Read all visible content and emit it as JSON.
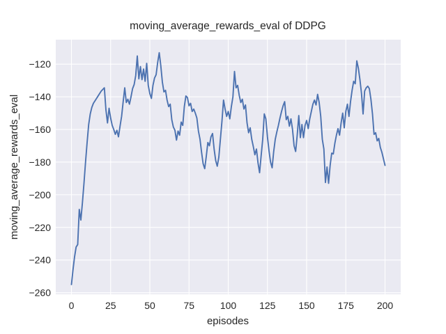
{
  "chart_data": {
    "type": "line",
    "title": "moving_average_rewards_eval of DDPG",
    "xlabel": "episodes",
    "ylabel": "moving_average_rewards_eval",
    "x_ticks": [
      0,
      25,
      50,
      75,
      100,
      125,
      150,
      175,
      200
    ],
    "y_ticks": [
      -260,
      -240,
      -220,
      -200,
      -180,
      -160,
      -140,
      -120
    ],
    "xlim": [
      -10,
      210
    ],
    "ylim": [
      -261,
      -105
    ],
    "grid": true,
    "legend_position": "none",
    "line_color": "#4c72b0",
    "plot_bg": "#eaeaf2",
    "grid_color": "#ffffff",
    "text_color": "#262626",
    "x_start": 0,
    "x_step": 1,
    "values": [
      -255,
      -246,
      -238,
      -232,
      -230.5,
      -209,
      -215.5,
      -205,
      -193,
      -180,
      -168,
      -157,
      -150.5,
      -146.5,
      -144,
      -142.5,
      -141,
      -139.5,
      -138,
      -136.5,
      -135.5,
      -134.5,
      -148,
      -156,
      -147,
      -153,
      -157.5,
      -160,
      -163,
      -160.5,
      -164.5,
      -158,
      -152,
      -143,
      -134.5,
      -143.5,
      -141.5,
      -144.5,
      -140,
      -135,
      -132.5,
      -127,
      -115,
      -129,
      -121.5,
      -129.5,
      -123,
      -130.5,
      -119.5,
      -133,
      -138,
      -141,
      -133,
      -128.5,
      -126.5,
      -119,
      -113,
      -121,
      -131,
      -137,
      -136,
      -142,
      -146,
      -144.5,
      -154,
      -158.5,
      -160.5,
      -166.5,
      -161,
      -163.5,
      -155.5,
      -157.5,
      -146,
      -139.5,
      -140.5,
      -145.5,
      -144,
      -149,
      -147.5,
      -150,
      -153,
      -161,
      -166,
      -174,
      -181,
      -184,
      -176.5,
      -168,
      -170,
      -164.5,
      -162.5,
      -172,
      -179,
      -182.5,
      -177,
      -166,
      -155,
      -142,
      -147.5,
      -152,
      -149,
      -153.5,
      -146,
      -140,
      -124.5,
      -134.5,
      -133,
      -139,
      -143.5,
      -141.5,
      -147.5,
      -145,
      -156,
      -162,
      -159,
      -166,
      -170.5,
      -175.5,
      -172,
      -180.5,
      -186.5,
      -176,
      -166,
      -150.5,
      -153.5,
      -164.5,
      -173,
      -180,
      -183.5,
      -173.5,
      -166,
      -161.5,
      -157.5,
      -153,
      -149,
      -145.5,
      -143,
      -154,
      -152,
      -158,
      -153.5,
      -160,
      -170,
      -173.5,
      -163.5,
      -151.5,
      -165,
      -157,
      -165,
      -157.5,
      -154.5,
      -159.5,
      -153.5,
      -149,
      -144.5,
      -142,
      -145,
      -138.5,
      -143.5,
      -152,
      -166,
      -172,
      -192.5,
      -183,
      -193,
      -182,
      -174.5,
      -175,
      -168.5,
      -163.5,
      -159.5,
      -163.5,
      -156,
      -150,
      -159,
      -149,
      -144.5,
      -152,
      -143,
      -136,
      -130.5,
      -132,
      -118,
      -122.5,
      -129.5,
      -138,
      -150.5,
      -136.5,
      -134.5,
      -133.5,
      -135,
      -141.5,
      -150.5,
      -163,
      -162,
      -167,
      -165.5,
      -171,
      -174,
      -178,
      -182
    ]
  }
}
